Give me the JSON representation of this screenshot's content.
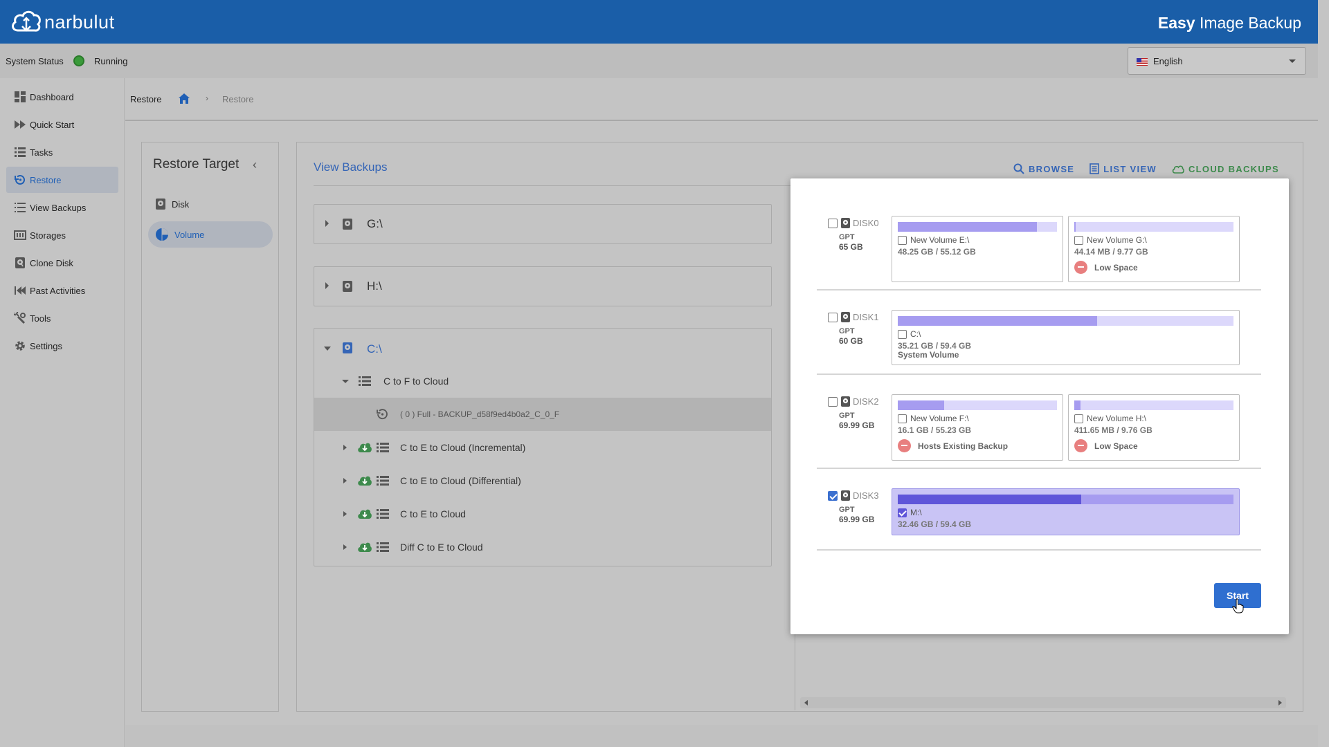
{
  "header": {
    "logo_text": "narbulut",
    "app_title_bold": "Easy",
    "app_title_rest": " Image Backup"
  },
  "status": {
    "label": "System Status",
    "value": "Running",
    "language": "English"
  },
  "sidebar": {
    "items": [
      {
        "label": "Dashboard",
        "icon": "dashboard-icon"
      },
      {
        "label": "Quick Start",
        "icon": "fast-forward-icon"
      },
      {
        "label": "Tasks",
        "icon": "list-icon"
      },
      {
        "label": "Restore",
        "icon": "restore-icon"
      },
      {
        "label": "View Backups",
        "icon": "list-icon"
      },
      {
        "label": "Storages",
        "icon": "storage-icon"
      },
      {
        "label": "Clone Disk",
        "icon": "disk-icon"
      },
      {
        "label": "Past Activities",
        "icon": "rewind-icon"
      },
      {
        "label": "Tools",
        "icon": "tools-icon"
      },
      {
        "label": "Settings",
        "icon": "gear-icon"
      }
    ],
    "active": "Restore"
  },
  "breadcrumb": {
    "title": "Restore",
    "current": "Restore"
  },
  "restore_target": {
    "title": "Restore Target",
    "items": [
      {
        "label": "Disk"
      },
      {
        "label": "Volume"
      }
    ],
    "active": "Volume"
  },
  "view_backups": {
    "title": "View Backups",
    "actions": {
      "browse": "BROWSE",
      "list_view": "LIST VIEW",
      "cloud_backups": "CLOUD BACKUPS"
    },
    "volumes": [
      {
        "name": "G:\\"
      },
      {
        "name": "H:\\"
      },
      {
        "name": "C:\\"
      }
    ],
    "tree": {
      "group": "C to F to Cloud",
      "backup": "( 0 ) Full - BACKUP_d58f9ed4b0a2_C_0_F",
      "tasks": [
        "C to E to Cloud (Incremental)",
        "C to E to Cloud (Differential)",
        "C to E to Cloud",
        "Diff C to E to Cloud"
      ]
    }
  },
  "dialog": {
    "disks": [
      {
        "name": "DISK0",
        "type": "GPT",
        "size": "65 GB",
        "checked": false,
        "partitions": [
          {
            "name": "New Volume E:\\",
            "usage": "48.25 GB / 55.12 GB",
            "fill": 0.875,
            "note": ""
          },
          {
            "name": "New Volume G:\\",
            "usage": "44.14 MB / 9.77 GB",
            "fill": 0.01,
            "note": "Low Space"
          }
        ]
      },
      {
        "name": "DISK1",
        "type": "GPT",
        "size": "60 GB",
        "checked": false,
        "partitions": [
          {
            "name": "C:\\",
            "usage": "35.21 GB / 59.4 GB",
            "fill": 0.593,
            "note": "System Volume"
          }
        ]
      },
      {
        "name": "DISK2",
        "type": "GPT",
        "size": "69.99 GB",
        "checked": false,
        "partitions": [
          {
            "name": "New Volume F:\\",
            "usage": "16.1 GB / 55.23 GB",
            "fill": 0.29,
            "note": "Hosts Existing Backup"
          },
          {
            "name": "New Volume H:\\",
            "usage": "411.65 MB / 9.76 GB",
            "fill": 0.04,
            "note": "Low Space"
          }
        ]
      },
      {
        "name": "DISK3",
        "type": "GPT",
        "size": "69.99 GB",
        "checked": true,
        "partitions": [
          {
            "name": "M:\\",
            "usage": "32.46 GB / 59.4 GB",
            "fill": 0.547,
            "note": ""
          }
        ]
      }
    ],
    "start_label": "Start"
  }
}
